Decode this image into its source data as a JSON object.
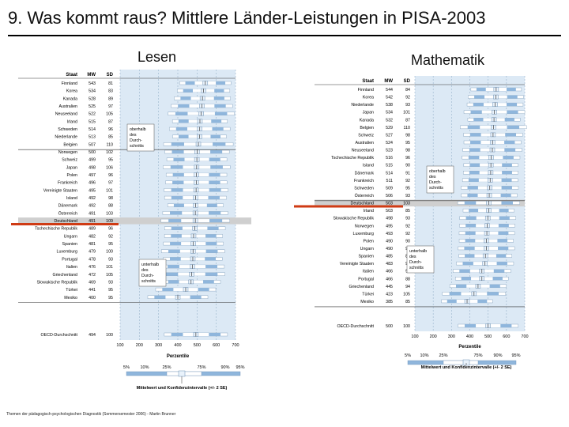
{
  "slide_title": "9. Was kommt raus? Mittlere Länder-Leistungen in PISA-2003",
  "footer": "Themen der pädagogisch-psychologischen Diagnostik (Sommersemester 2006) - Martin Brunner",
  "colors": {
    "panel": "#dce9f5",
    "bar": "#8fb6dc",
    "marker": "#e9f2fb",
    "highlight": "#cf3b14",
    "grid": "#9ab4cc",
    "shade": "#cfcfcf"
  },
  "chart_data": [
    {
      "type": "table",
      "title": "Lesen",
      "columns": [
        "Staat",
        "MW",
        "SD"
      ],
      "rows": [
        {
          "staat": "Finnland",
          "mw": "543",
          "sd": "81"
        },
        {
          "staat": "Korea",
          "mw": "534",
          "sd": "83"
        },
        {
          "staat": "Kanada",
          "mw": "528",
          "sd": "89"
        },
        {
          "staat": "Australien",
          "mw": "525",
          "sd": "97"
        },
        {
          "staat": "Neuseeland",
          "mw": "522",
          "sd": "105"
        },
        {
          "staat": "Irland",
          "mw": "515",
          "sd": "87"
        },
        {
          "staat": "Schweden",
          "mw": "514",
          "sd": "96"
        },
        {
          "staat": "Niederlande",
          "mw": "513",
          "sd": "85"
        },
        {
          "staat": "Belgien",
          "mw": "507",
          "sd": "110"
        },
        {
          "staat": "Norwegen",
          "mw": "500",
          "sd": "102"
        },
        {
          "staat": "Schweiz",
          "mw": "499",
          "sd": "95"
        },
        {
          "staat": "Japan",
          "mw": "498",
          "sd": "106"
        },
        {
          "staat": "Polen",
          "mw": "497",
          "sd": "96"
        },
        {
          "staat": "Frankreich",
          "mw": "496",
          "sd": "97"
        },
        {
          "staat": "Vereinigte Staaten",
          "mw": "495",
          "sd": "101"
        },
        {
          "staat": "Island",
          "mw": "492",
          "sd": "98"
        },
        {
          "staat": "Dänemark",
          "mw": "492",
          "sd": "88"
        },
        {
          "staat": "Österreich",
          "mw": "491",
          "sd": "103"
        },
        {
          "staat": "Deutschland",
          "mw": "491",
          "sd": "109"
        },
        {
          "staat": "Tschechische Republik",
          "mw": "489",
          "sd": "96"
        },
        {
          "staat": "Ungarn",
          "mw": "482",
          "sd": "92"
        },
        {
          "staat": "Spanien",
          "mw": "481",
          "sd": "95"
        },
        {
          "staat": "Luxemburg",
          "mw": "479",
          "sd": "100"
        },
        {
          "staat": "Portugal",
          "mw": "478",
          "sd": "93"
        },
        {
          "staat": "Italien",
          "mw": "476",
          "sd": "101"
        },
        {
          "staat": "Griechenland",
          "mw": "472",
          "sd": "105"
        },
        {
          "staat": "Slowakische Republik",
          "mw": "469",
          "sd": "93"
        },
        {
          "staat": "Türkei",
          "mw": "441",
          "sd": "95"
        },
        {
          "staat": "Mexiko",
          "mw": "400",
          "sd": "95"
        }
      ],
      "oecd": {
        "staat": "OECD-Durchschnitt",
        "mw": "494",
        "sd": "100"
      },
      "highlight": "Deutschland",
      "groups": [
        {
          "label": "oberhalb des Durch-schnitts",
          "lines": [
            "oberhalb",
            "des",
            "Durch-",
            "schnitts"
          ]
        },
        {
          "label": "unterhalb des Durch-schnitts",
          "lines": [
            "unterhalb",
            "des",
            "Durch-",
            "schnitts"
          ]
        }
      ],
      "xlim": [
        100,
        700
      ],
      "ticks": [
        "100",
        "200",
        "300",
        "400",
        "500",
        "600",
        "700"
      ],
      "xlabel": "Perzentile",
      "legend_percentiles": [
        "5%",
        "10%",
        "25%",
        "75%",
        "90%",
        "95%"
      ],
      "legend_caption": "Mittelwert und Konfidenzintervalle (+/- 2 SE)"
    },
    {
      "type": "table",
      "title": "Mathematik",
      "columns": [
        "Staat",
        "MW",
        "SD"
      ],
      "rows": [
        {
          "staat": "Finnland",
          "mw": "544",
          "sd": "84"
        },
        {
          "staat": "Korea",
          "mw": "542",
          "sd": "92"
        },
        {
          "staat": "Niederlande",
          "mw": "538",
          "sd": "93"
        },
        {
          "staat": "Japan",
          "mw": "534",
          "sd": "101"
        },
        {
          "staat": "Kanada",
          "mw": "532",
          "sd": "87"
        },
        {
          "staat": "Belgien",
          "mw": "529",
          "sd": "110"
        },
        {
          "staat": "Schweiz",
          "mw": "527",
          "sd": "98"
        },
        {
          "staat": "Australien",
          "mw": "524",
          "sd": "95"
        },
        {
          "staat": "Neuseeland",
          "mw": "523",
          "sd": "98"
        },
        {
          "staat": "Tschechische Republik",
          "mw": "516",
          "sd": "96"
        },
        {
          "staat": "Island",
          "mw": "515",
          "sd": "90"
        },
        {
          "staat": "Dänemark",
          "mw": "514",
          "sd": "91"
        },
        {
          "staat": "Frankreich",
          "mw": "511",
          "sd": "92"
        },
        {
          "staat": "Schweden",
          "mw": "509",
          "sd": "95"
        },
        {
          "staat": "Österreich",
          "mw": "506",
          "sd": "93"
        },
        {
          "staat": "Deutschland",
          "mw": "503",
          "sd": "103"
        },
        {
          "staat": "Irland",
          "mw": "503",
          "sd": "85"
        },
        {
          "staat": "Slowakische Republik",
          "mw": "498",
          "sd": "93"
        },
        {
          "staat": "Norwegen",
          "mw": "495",
          "sd": "92"
        },
        {
          "staat": "Luxemburg",
          "mw": "493",
          "sd": "92"
        },
        {
          "staat": "Polen",
          "mw": "490",
          "sd": "90"
        },
        {
          "staat": "Ungarn",
          "mw": "490",
          "sd": "94"
        },
        {
          "staat": "Spanien",
          "mw": "485",
          "sd": "88"
        },
        {
          "staat": "Vereinigte Staaten",
          "mw": "483",
          "sd": "95"
        },
        {
          "staat": "Italien",
          "mw": "466",
          "sd": "96"
        },
        {
          "staat": "Portugal",
          "mw": "466",
          "sd": "88"
        },
        {
          "staat": "Griechenland",
          "mw": "445",
          "sd": "94"
        },
        {
          "staat": "Türkei",
          "mw": "423",
          "sd": "105"
        },
        {
          "staat": "Mexiko",
          "mw": "385",
          "sd": "85"
        }
      ],
      "oecd": {
        "staat": "OECD-Durchschnitt",
        "mw": "500",
        "sd": "100"
      },
      "highlight": "Deutschland",
      "groups": [
        {
          "label": "oberhalb des Durch-schnitts",
          "lines": [
            "oberhalb",
            "des",
            "Durch-",
            "schnitts"
          ]
        },
        {
          "label": "unterhalb des Durch-schnitts",
          "lines": [
            "unterhalb",
            "des",
            "Durch-",
            "schnitts"
          ]
        }
      ],
      "xlim": [
        100,
        700
      ],
      "ticks": [
        "100",
        "200",
        "300",
        "400",
        "500",
        "600",
        "700"
      ],
      "xlabel": "Perzentile",
      "legend_percentiles": [
        "5%",
        "10%",
        "25%",
        "75%",
        "90%",
        "95%"
      ],
      "legend_caption": "Mittelwert und Konfidenzintervalle (+/- 2 SE)"
    }
  ]
}
